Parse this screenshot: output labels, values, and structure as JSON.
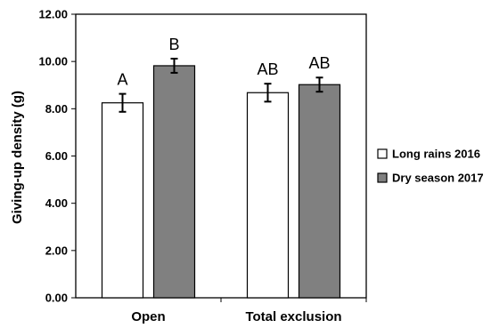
{
  "chart_data": {
    "type": "bar",
    "ylabel": "Giving-up density (g)",
    "xlabel": "",
    "ylim": [
      0,
      12
    ],
    "ytick_step": 2,
    "yticks": [
      "0.00",
      "2.00",
      "4.00",
      "6.00",
      "8.00",
      "10.00",
      "12.00"
    ],
    "categories": [
      "Open",
      "Total exclusion"
    ],
    "series": [
      {
        "name": "Long rains 2016",
        "color": "#ffffff",
        "values": [
          8.25,
          8.68
        ],
        "errors": [
          0.38,
          0.38
        ],
        "labels": [
          "A",
          "AB"
        ]
      },
      {
        "name": "Dry season 2017",
        "color": "#808080",
        "values": [
          9.82,
          9.02
        ],
        "errors": [
          0.3,
          0.3
        ],
        "labels": [
          "B",
          "AB"
        ]
      }
    ],
    "grid": false,
    "legend_position": "right"
  }
}
